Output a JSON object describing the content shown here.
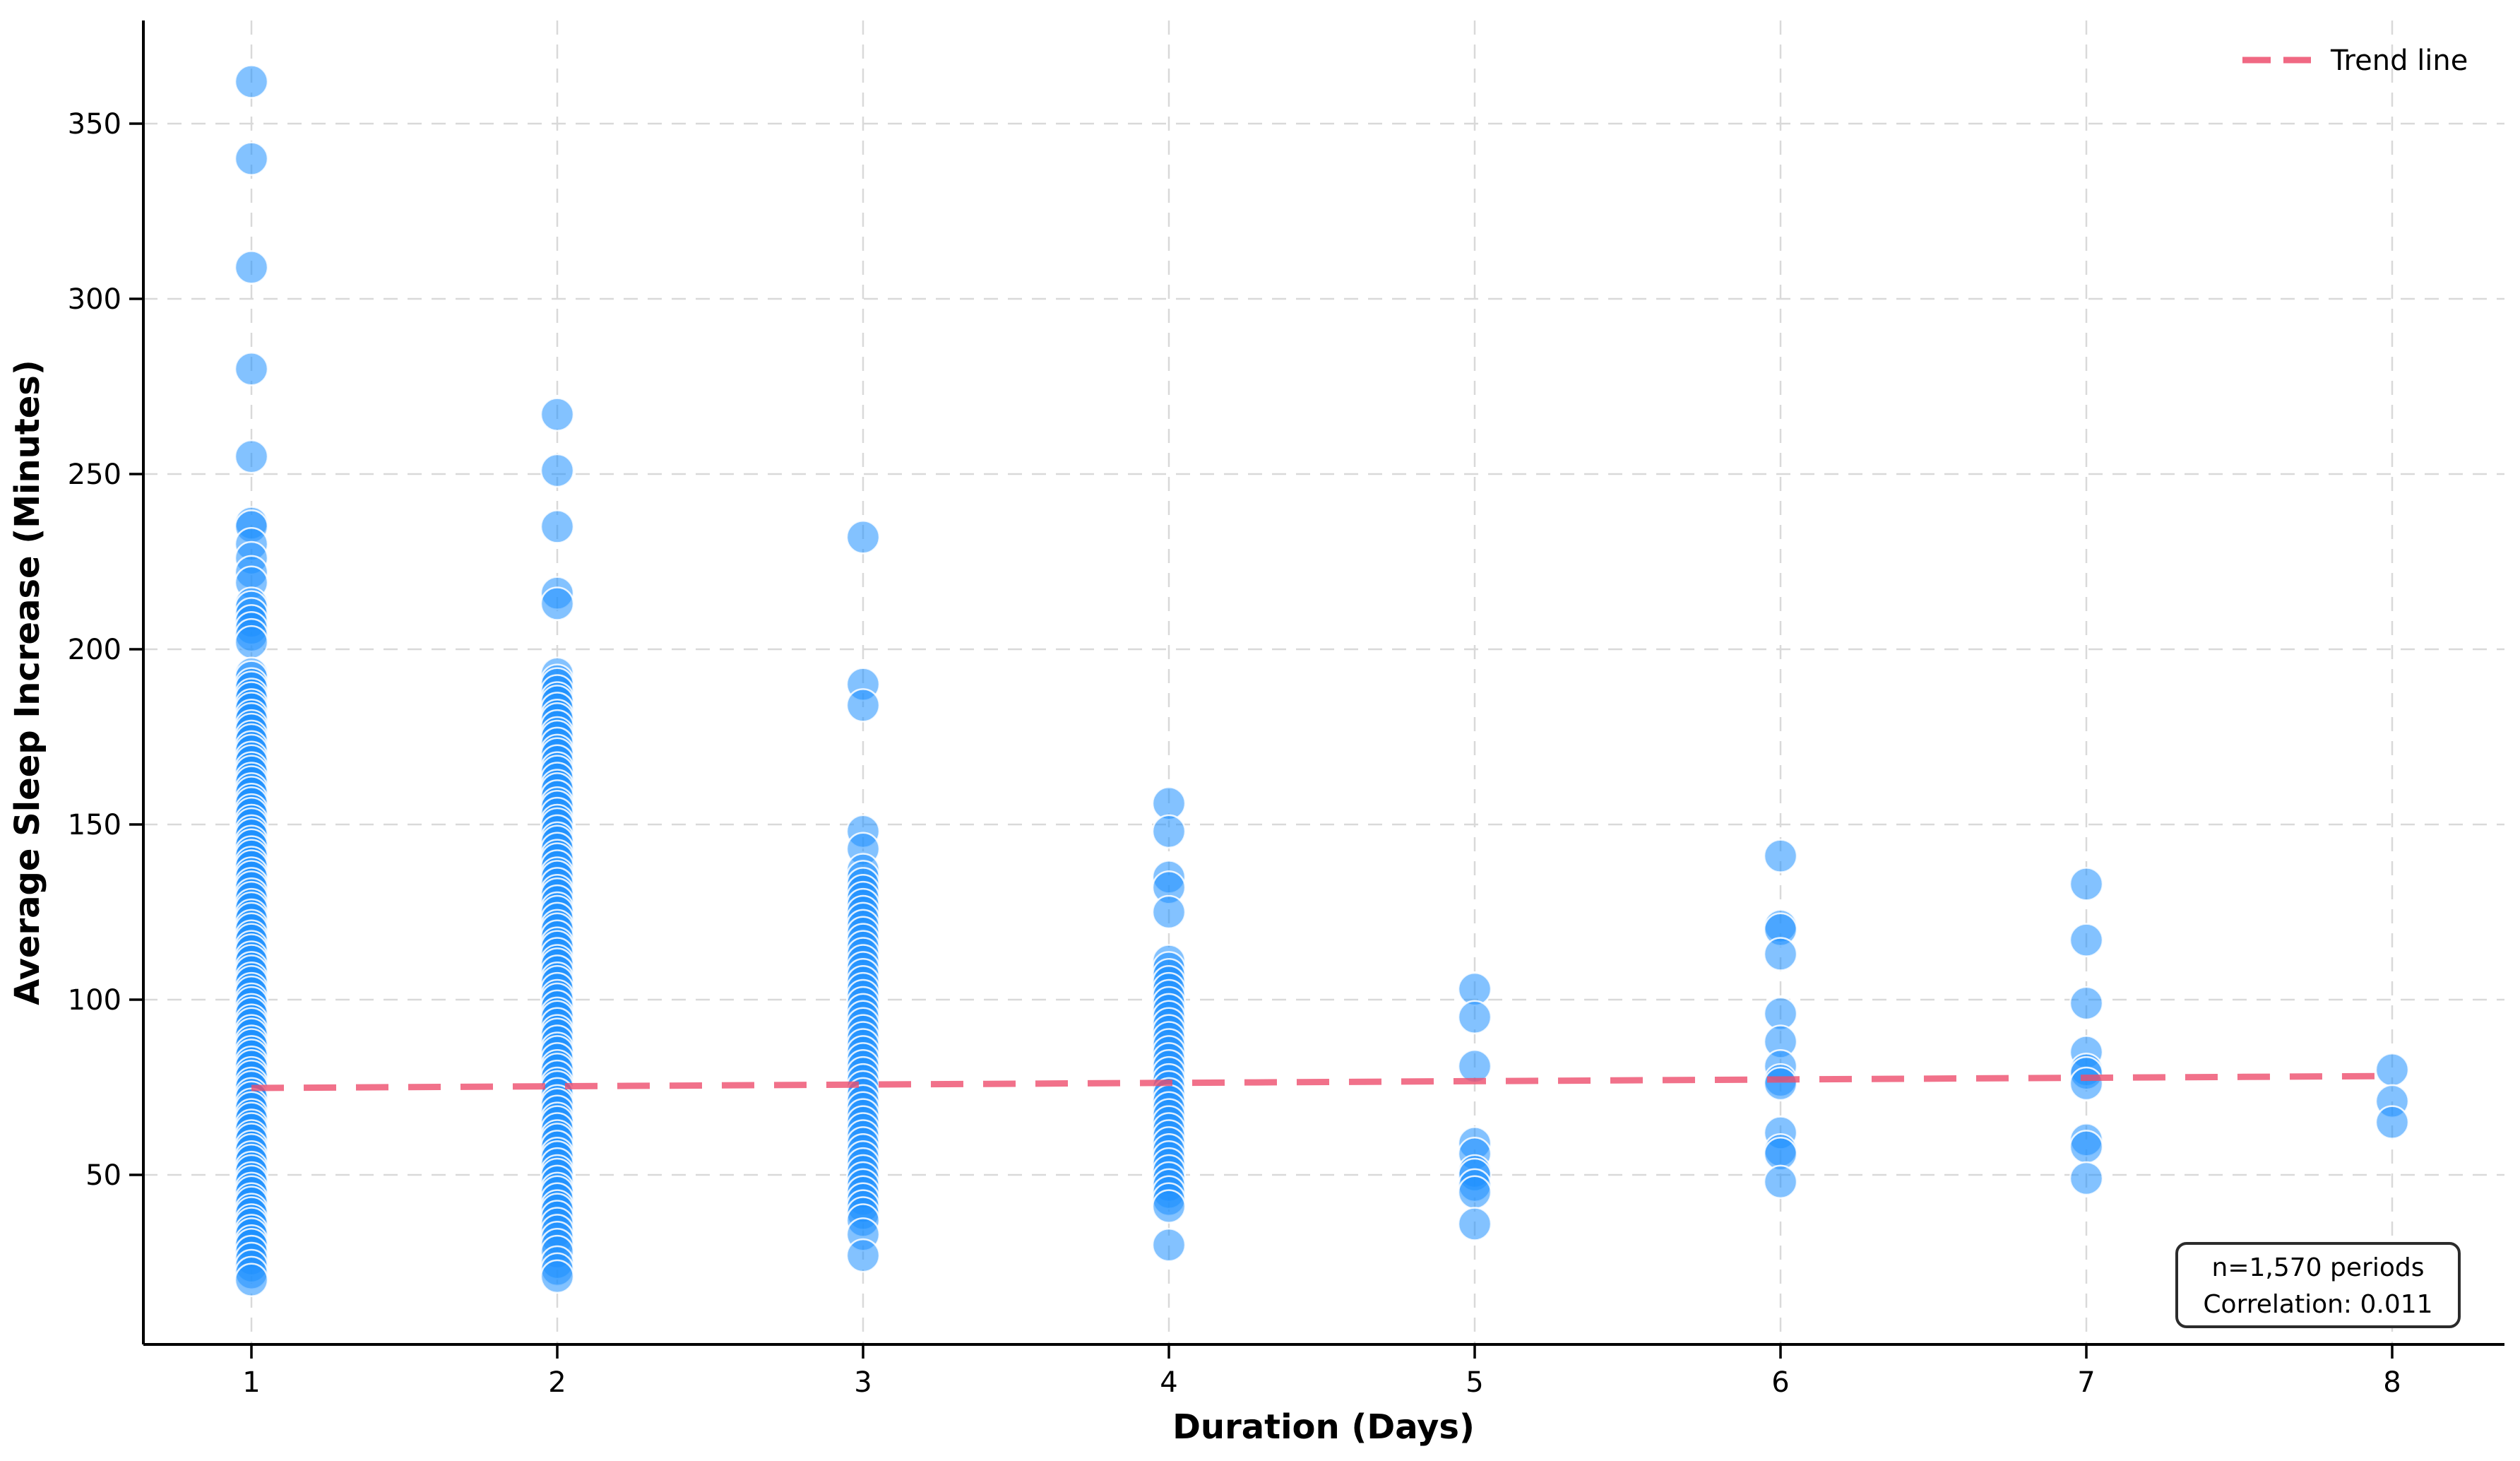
{
  "chart_data": {
    "type": "scatter",
    "title": "",
    "xlabel": "Duration (Days)",
    "ylabel": "Average Sleep Increase (Minutes)",
    "x_ticks": [
      1,
      2,
      3,
      4,
      5,
      6,
      7,
      8
    ],
    "y_ticks": [
      50,
      100,
      150,
      200,
      250,
      300,
      350
    ],
    "xlim": [
      0.65,
      8.37
    ],
    "ylim": [
      2,
      379
    ],
    "grid": true,
    "legend_position": "upper right",
    "legend_label": "Trend line",
    "annotation": [
      "n=1,570 periods",
      "Correlation: 0.011"
    ],
    "n_periods": 1570,
    "correlation": 0.011,
    "trend_line": {
      "x": [
        1,
        8
      ],
      "y": [
        74.8,
        78.2
      ]
    },
    "colors": {
      "point_fill": "#1e90ff",
      "point_alpha": 0.55,
      "point_edge": "#ffffff",
      "point_edge_alpha": 0.85,
      "trend": "#ed4d6d",
      "trend_alpha": 0.8,
      "grid": "#d9d9d9",
      "spine": "#000000"
    },
    "series": [
      {
        "name": "sleep-increase-periods",
        "columns": [
          {
            "x": 1,
            "values": [
              362,
              340,
              309,
              280,
              255,
              236,
              235,
              230,
              226,
              222,
              219,
              213,
              212,
              210,
              208,
              206,
              204,
              202,
              193,
              192,
              190,
              189,
              187,
              186,
              184,
              183,
              181,
              180,
              178,
              177,
              175,
              174,
              172,
              171,
              169,
              168,
              166,
              165,
              163,
              162,
              160,
              159,
              157,
              156,
              154,
              153,
              151,
              150,
              148,
              147,
              145,
              144,
              142,
              141,
              139,
              138,
              136,
              135,
              133,
              132,
              130,
              129,
              127,
              126,
              124,
              123,
              121,
              120,
              118,
              117,
              115,
              114,
              112,
              111,
              109,
              108,
              106,
              105,
              103,
              102,
              100,
              99,
              97,
              96,
              94,
              93,
              91,
              90,
              88,
              87,
              85,
              84,
              82,
              81,
              79,
              78,
              76,
              75,
              73,
              72,
              70,
              69,
              67,
              66,
              64,
              63,
              61,
              60,
              58,
              57,
              55,
              54,
              52,
              51,
              49,
              48,
              46,
              45,
              43,
              42,
              40,
              39,
              37,
              36,
              34,
              33,
              31,
              30,
              28,
              26,
              24,
              22,
              20
            ]
          },
          {
            "x": 2,
            "values": [
              267,
              251,
              235,
              216,
              213,
              193,
              191,
              190,
              188,
              186,
              185,
              183,
              181,
              180,
              178,
              176,
              175,
              173,
              171,
              170,
              168,
              166,
              165,
              163,
              161,
              160,
              158,
              156,
              155,
              153,
              151,
              150,
              148,
              146,
              145,
              143,
              141,
              140,
              138,
              136,
              135,
              133,
              131,
              130,
              128,
              126,
              125,
              123,
              121,
              120,
              118,
              116,
              115,
              113,
              111,
              110,
              108,
              106,
              105,
              103,
              101,
              100,
              98,
              96,
              95,
              93,
              91,
              90,
              88,
              86,
              85,
              83,
              81,
              80,
              78,
              76,
              75,
              73,
              71,
              70,
              68,
              66,
              65,
              63,
              61,
              60,
              58,
              56,
              55,
              53,
              51,
              50,
              48,
              46,
              45,
              43,
              41,
              40,
              38,
              36,
              34,
              32,
              30,
              28,
              25,
              23,
              21
            ]
          },
          {
            "x": 3,
            "values": [
              232,
              190,
              184,
              148,
              143,
              137,
              135,
              133,
              131,
              129,
              127,
              125,
              123,
              121,
              119,
              117,
              115,
              113,
              111,
              109,
              107,
              105,
              103,
              101,
              99,
              97,
              95,
              93,
              91,
              89,
              87,
              85,
              83,
              81,
              79,
              77,
              75,
              73,
              71,
              69,
              67,
              65,
              63,
              61,
              59,
              57,
              55,
              53,
              51,
              49,
              47,
              45,
              43,
              41,
              39,
              37,
              33,
              27
            ]
          },
          {
            "x": 4,
            "values": [
              156,
              148,
              135,
              132,
              125,
              111,
              109,
              107,
              105,
              103,
              101,
              99,
              97,
              95,
              93,
              91,
              89,
              87,
              85,
              83,
              81,
              79,
              77,
              75,
              73,
              71,
              69,
              67,
              65,
              63,
              61,
              59,
              57,
              55,
              53,
              51,
              49,
              47,
              45,
              43,
              41,
              30
            ]
          },
          {
            "x": 5,
            "values": [
              103,
              95,
              81,
              59,
              56,
              51,
              50,
              47,
              45,
              36
            ]
          },
          {
            "x": 6,
            "values": [
              141,
              121,
              120,
              113,
              96,
              88,
              81,
              77,
              76,
              62,
              57,
              56,
              48
            ]
          },
          {
            "x": 7,
            "values": [
              133,
              117,
              99,
              85,
              80,
              79,
              76,
              60,
              58,
              49
            ]
          },
          {
            "x": 8,
            "values": [
              80,
              71,
              65
            ]
          }
        ]
      }
    ]
  }
}
